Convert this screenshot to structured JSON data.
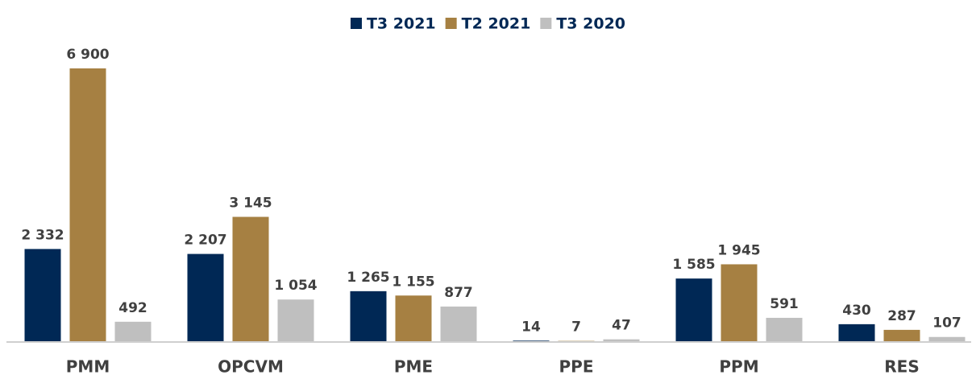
{
  "chart_data": {
    "type": "bar",
    "categories": [
      "PMM",
      "OPCVM",
      "PME",
      "PPE",
      "PPM",
      "RES"
    ],
    "series": [
      {
        "name": "T3 2021",
        "color": "#002855",
        "values": [
          2332,
          2207,
          1265,
          14,
          1585,
          430
        ],
        "value_labels": [
          "2 332",
          "2 207",
          "1 265",
          "14",
          "1 585",
          "430"
        ]
      },
      {
        "name": "T2 2021",
        "color": "#a68042",
        "values": [
          6900,
          3145,
          1155,
          7,
          1945,
          287
        ],
        "value_labels": [
          "6 900",
          "3 145",
          "1 155",
          "7",
          "1 945",
          "287"
        ]
      },
      {
        "name": "T3 2020",
        "color": "#bfbfbf",
        "values": [
          492,
          1054,
          877,
          47,
          591,
          107
        ],
        "value_labels": [
          "492",
          "1 054",
          "877",
          "47",
          "591",
          "107"
        ]
      }
    ],
    "legend": "top"
  }
}
